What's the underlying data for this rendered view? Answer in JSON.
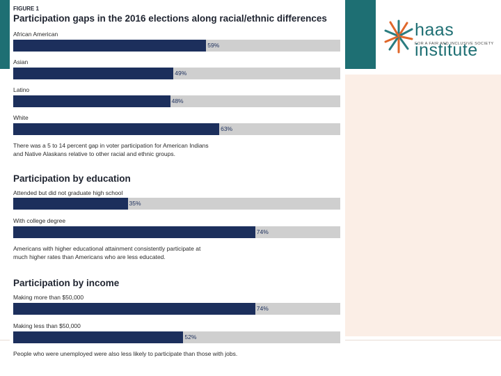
{
  "logo": {
    "word": "haas institute",
    "subtitle": "FOR A FAIR AND INCLUSIVE SOCIETY",
    "icon": "starburst-logo-icon"
  },
  "figure_label": "FIGURE 1",
  "notes": {
    "race_note_line1": "There was a 5 to 14 percent gap in voter participation for American Indians",
    "race_note_line2": "and Native Alaskans relative to other racial and ethnic groups.",
    "education_note_line1": "Americans with higher educational attainment consistently participate at",
    "education_note_line2": "much higher rates than Americans who are less educated.",
    "income_note": "People who were unemployed were also less likely to participate than those with jobs."
  },
  "colors": {
    "bar_fill": "#1c2f5c",
    "bar_track": "#cfcfcf",
    "teal": "#1e6f73",
    "peach": "#fbeee6"
  },
  "chart_data": [
    {
      "type": "bar",
      "title": "Participation gaps in the 2016 elections along racial/ethnic differences",
      "categories": [
        "African American",
        "Asian",
        "Latino",
        "White"
      ],
      "values": [
        59,
        49,
        48,
        63
      ],
      "value_labels": [
        "59%",
        "49%",
        "48%",
        "63%"
      ],
      "xlim": [
        0,
        100
      ],
      "orientation": "horizontal"
    },
    {
      "type": "bar",
      "title": "Participation by education",
      "categories": [
        "Attended but did not graduate high school",
        "With college degree"
      ],
      "values": [
        35,
        74
      ],
      "value_labels": [
        "35%",
        "74%"
      ],
      "xlim": [
        0,
        100
      ],
      "orientation": "horizontal"
    },
    {
      "type": "bar",
      "title": "Participation by income",
      "categories": [
        "Making more than $50,000",
        "Making less than $50,000"
      ],
      "values": [
        74,
        52
      ],
      "value_labels": [
        "74%",
        "52%"
      ],
      "xlim": [
        0,
        100
      ],
      "orientation": "horizontal"
    }
  ]
}
